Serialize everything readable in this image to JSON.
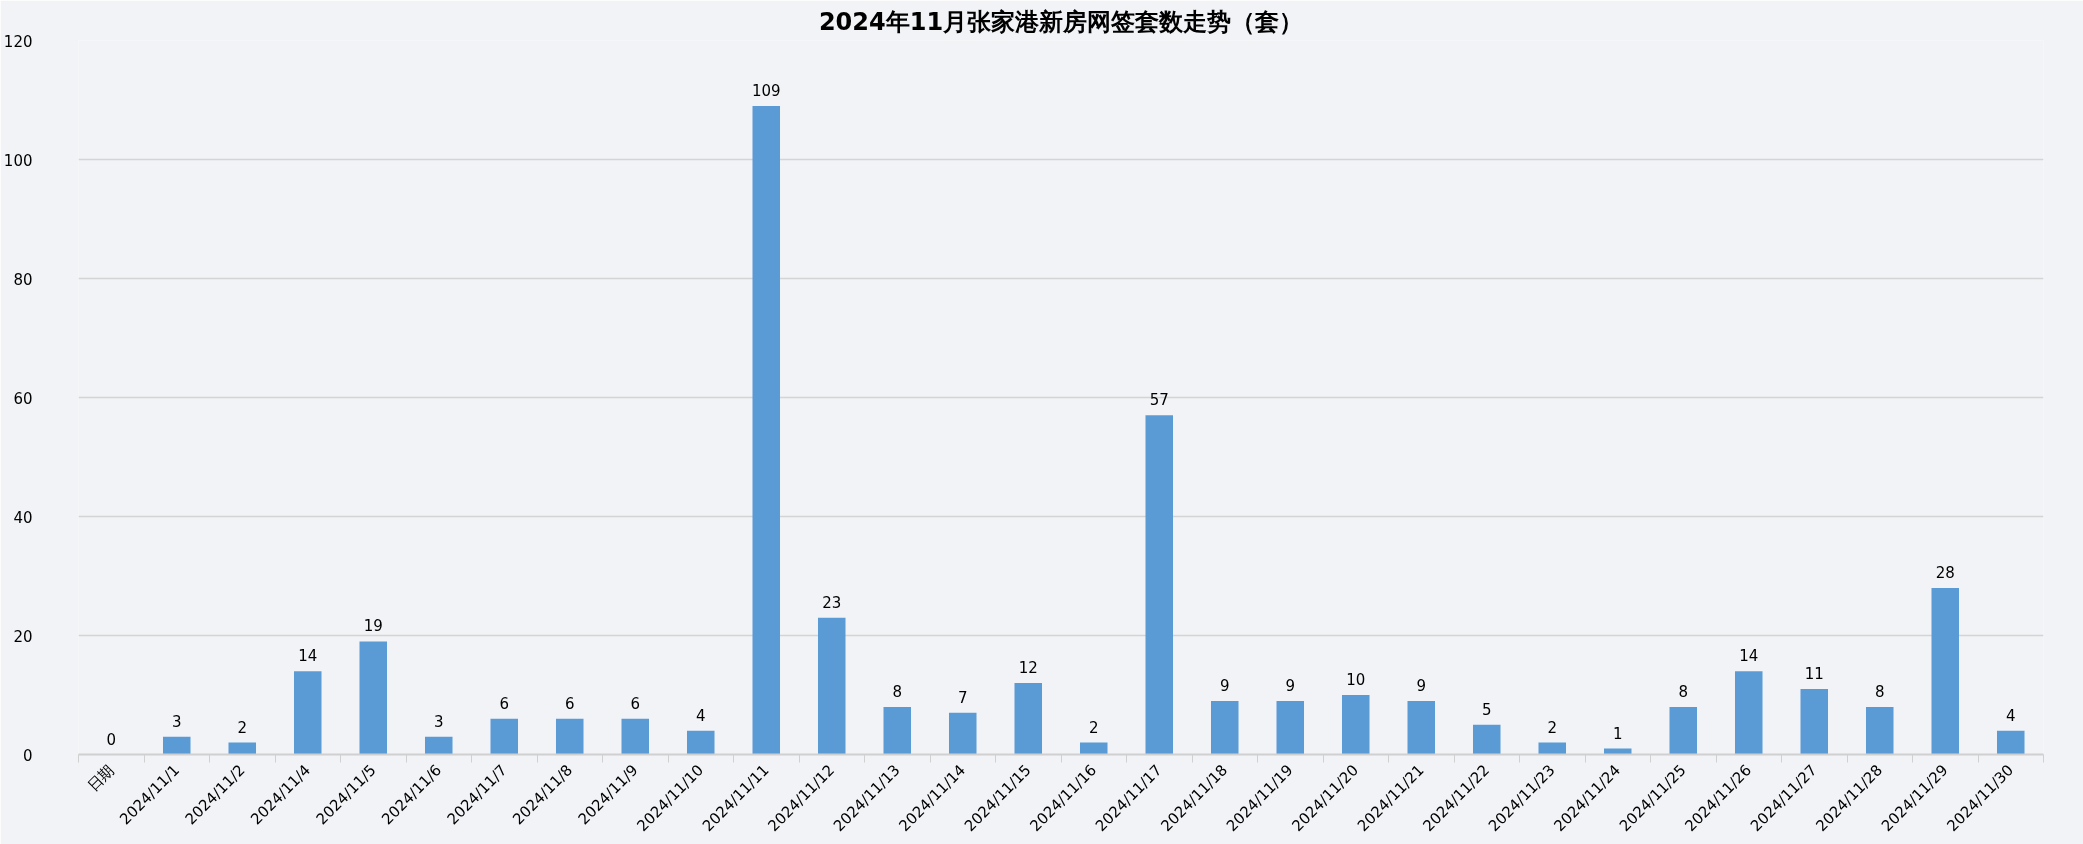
{
  "chart_data": {
    "type": "bar",
    "title": "2024年11月张家港新房网签套数走势（套）",
    "categories": [
      "日期",
      "2024/11/1",
      "2024/11/2",
      "2024/11/4",
      "2024/11/5",
      "2024/11/6",
      "2024/11/7",
      "2024/11/8",
      "2024/11/9",
      "2024/11/10",
      "2024/11/11",
      "2024/11/12",
      "2024/11/13",
      "2024/11/14",
      "2024/11/15",
      "2024/11/16",
      "2024/11/17",
      "2024/11/18",
      "2024/11/19",
      "2024/11/20",
      "2024/11/21",
      "2024/11/22",
      "2024/11/23",
      "2024/11/24",
      "2024/11/25",
      "2024/11/26",
      "2024/11/27",
      "2024/11/28",
      "2024/11/29",
      "2024/11/30"
    ],
    "values": [
      0,
      3,
      2,
      14,
      19,
      3,
      6,
      6,
      6,
      4,
      109,
      23,
      8,
      7,
      12,
      2,
      57,
      9,
      9,
      10,
      9,
      5,
      2,
      1,
      8,
      14,
      11,
      8,
      28,
      4
    ],
    "color": "#5b9bd5",
    "ylim": [
      0,
      120
    ],
    "yticks": [
      0,
      20,
      40,
      60,
      80,
      100,
      120
    ],
    "grid": "y",
    "data_labels": true
  }
}
